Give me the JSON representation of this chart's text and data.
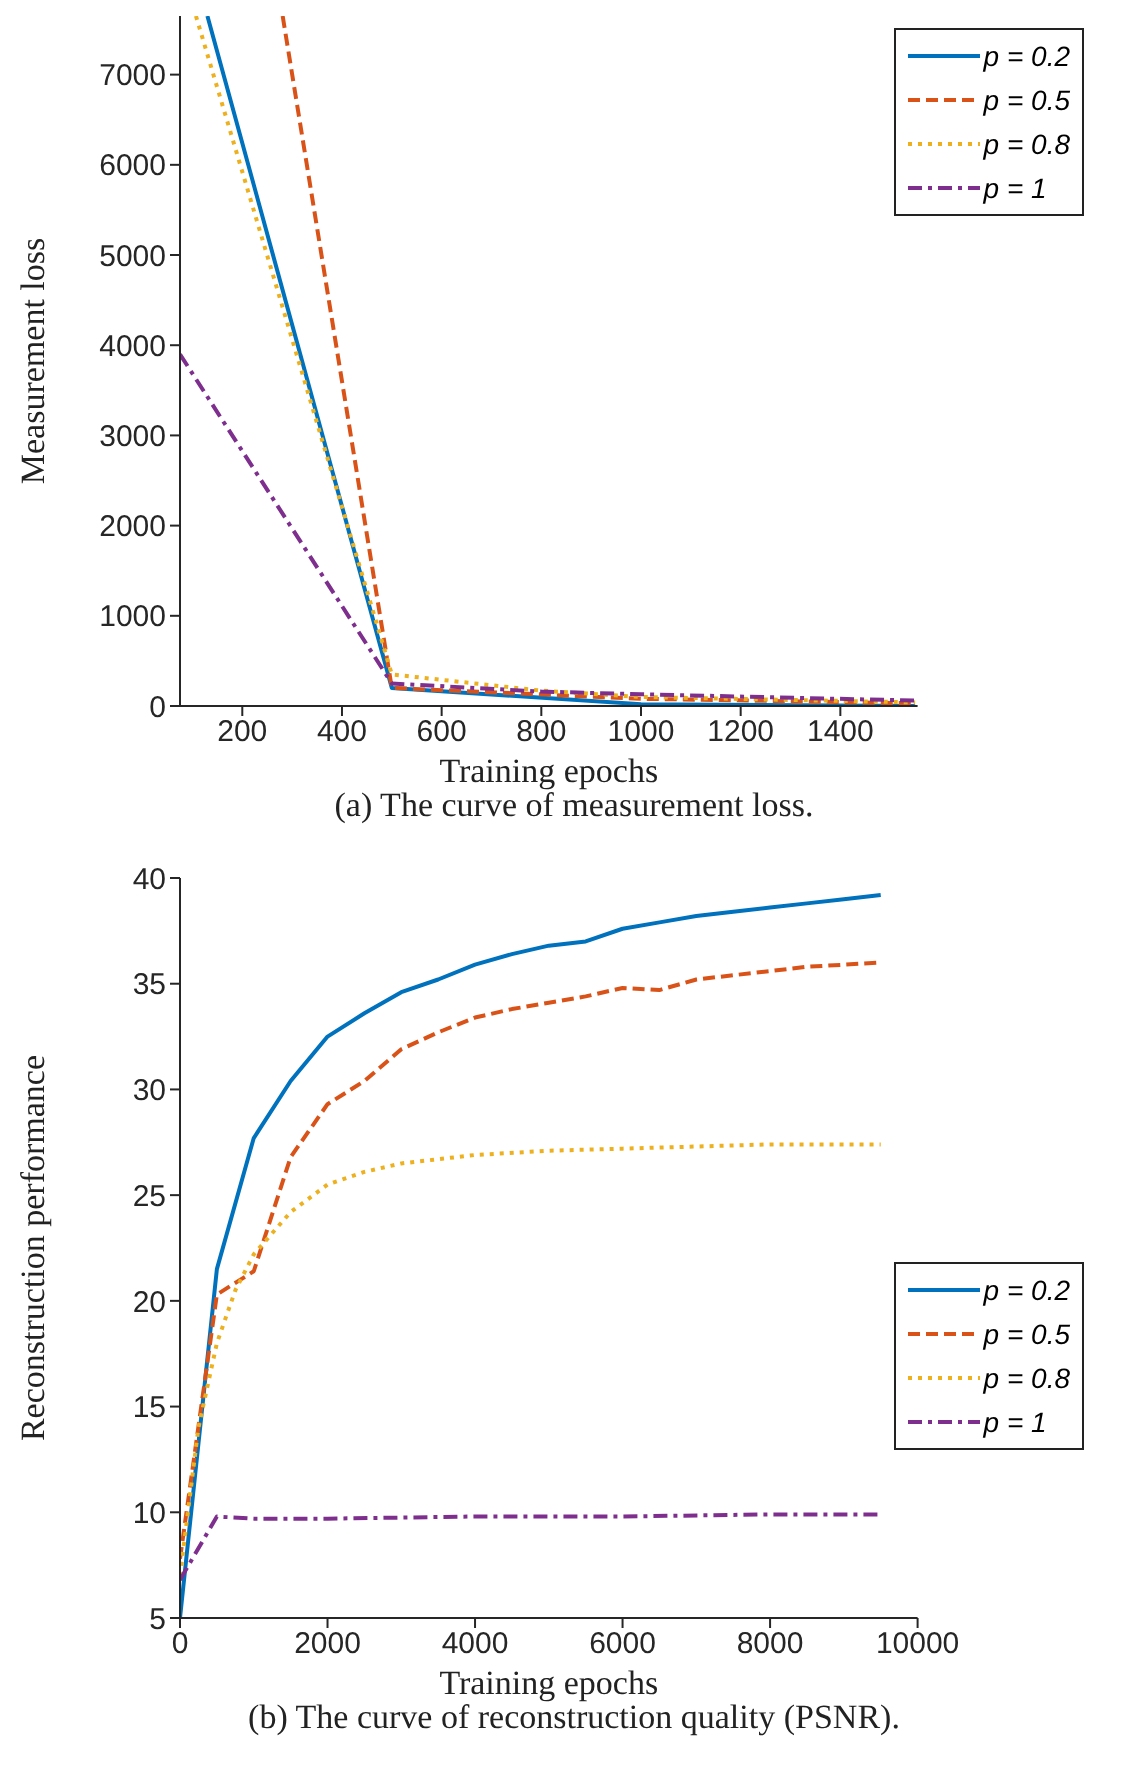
{
  "chart_data": [
    {
      "type": "line",
      "title": "(a) The curve of measurement loss.",
      "xlabel": "Training epochs",
      "ylabel": "Measurement loss",
      "xlim": [
        75,
        1555
      ],
      "xticks": [
        200,
        400,
        600,
        800,
        1000,
        1200,
        1400
      ],
      "ylim": [
        0,
        7650
      ],
      "yticks": [
        0,
        1000,
        2000,
        3000,
        4000,
        5000,
        6000,
        7000
      ],
      "legend": "top right",
      "grid": false,
      "series": [
        {
          "name": "p = 0.2",
          "color": "#0072bd",
          "line_style": "solid",
          "x": [
            130,
            500,
            1000,
            1550
          ],
          "values": [
            7650,
            200,
            20,
            0
          ]
        },
        {
          "name": "p = 0.5",
          "color": "#d95319",
          "line_style": "dashed",
          "x": [
            281,
            500,
            1000,
            1550
          ],
          "values": [
            7650,
            200,
            80,
            30
          ]
        },
        {
          "name": "p = 0.8",
          "color": "#edb120",
          "line_style": "dotted",
          "x": [
            107,
            500,
            800,
            1000,
            1550
          ],
          "values": [
            7650,
            350,
            170,
            100,
            40
          ]
        },
        {
          "name": "p = 1",
          "color": "#7e2f8e",
          "line_style": "dashdot",
          "x": [
            75,
            500,
            800,
            1000,
            1550
          ],
          "values": [
            3900,
            250,
            160,
            130,
            60
          ]
        }
      ]
    },
    {
      "type": "line",
      "title": "(b) The curve of reconstruction quality (PSNR).",
      "xlabel": "Training epochs",
      "ylabel": "Reconstruction performance",
      "xlim": [
        0,
        10000
      ],
      "xticks": [
        0,
        2000,
        4000,
        6000,
        8000,
        10000
      ],
      "ylim": [
        5,
        40
      ],
      "yticks": [
        5,
        10,
        15,
        20,
        25,
        30,
        35,
        40
      ],
      "legend": "right",
      "grid": false,
      "series": [
        {
          "name": "p = 0.2",
          "color": "#0072bd",
          "line_style": "solid",
          "x": [
            0,
            500,
            1000,
            1500,
            2000,
            2500,
            3000,
            3500,
            4000,
            4500,
            5000,
            5500,
            6000,
            6500,
            7000,
            7500,
            8000,
            8500,
            9000,
            9500
          ],
          "values": [
            5.0,
            21.5,
            27.7,
            30.4,
            32.5,
            33.6,
            34.6,
            35.2,
            35.9,
            36.4,
            36.8,
            37.0,
            37.6,
            37.9,
            38.2,
            38.4,
            38.6,
            38.8,
            39.0,
            39.2
          ]
        },
        {
          "name": "p = 0.5",
          "color": "#d95319",
          "line_style": "dashed",
          "x": [
            0,
            500,
            1000,
            1500,
            2000,
            2500,
            3000,
            3500,
            4000,
            4500,
            5000,
            5500,
            6000,
            6500,
            7000,
            7500,
            8000,
            8500,
            9000,
            9500
          ],
          "values": [
            7.8,
            20.3,
            21.4,
            26.8,
            29.3,
            30.4,
            31.9,
            32.7,
            33.4,
            33.8,
            34.1,
            34.4,
            34.8,
            34.7,
            35.2,
            35.4,
            35.6,
            35.8,
            35.9,
            36.0
          ]
        },
        {
          "name": "p = 0.8",
          "color": "#edb120",
          "line_style": "dotted",
          "x": [
            0,
            250,
            500,
            750,
            1000,
            1500,
            2000,
            2500,
            3000,
            4000,
            5000,
            6000,
            7000,
            8000,
            9500
          ],
          "values": [
            7.0,
            14,
            18.0,
            20.5,
            22.2,
            24.2,
            25.5,
            26.1,
            26.5,
            26.9,
            27.1,
            27.2,
            27.3,
            27.4,
            27.4
          ]
        },
        {
          "name": "p = 1",
          "color": "#7e2f8e",
          "line_style": "dashdot",
          "x": [
            0,
            500,
            1000,
            2000,
            4000,
            6000,
            8000,
            9500
          ],
          "values": [
            6.8,
            9.8,
            9.7,
            9.7,
            9.8,
            9.8,
            9.9,
            9.9
          ]
        }
      ]
    }
  ]
}
